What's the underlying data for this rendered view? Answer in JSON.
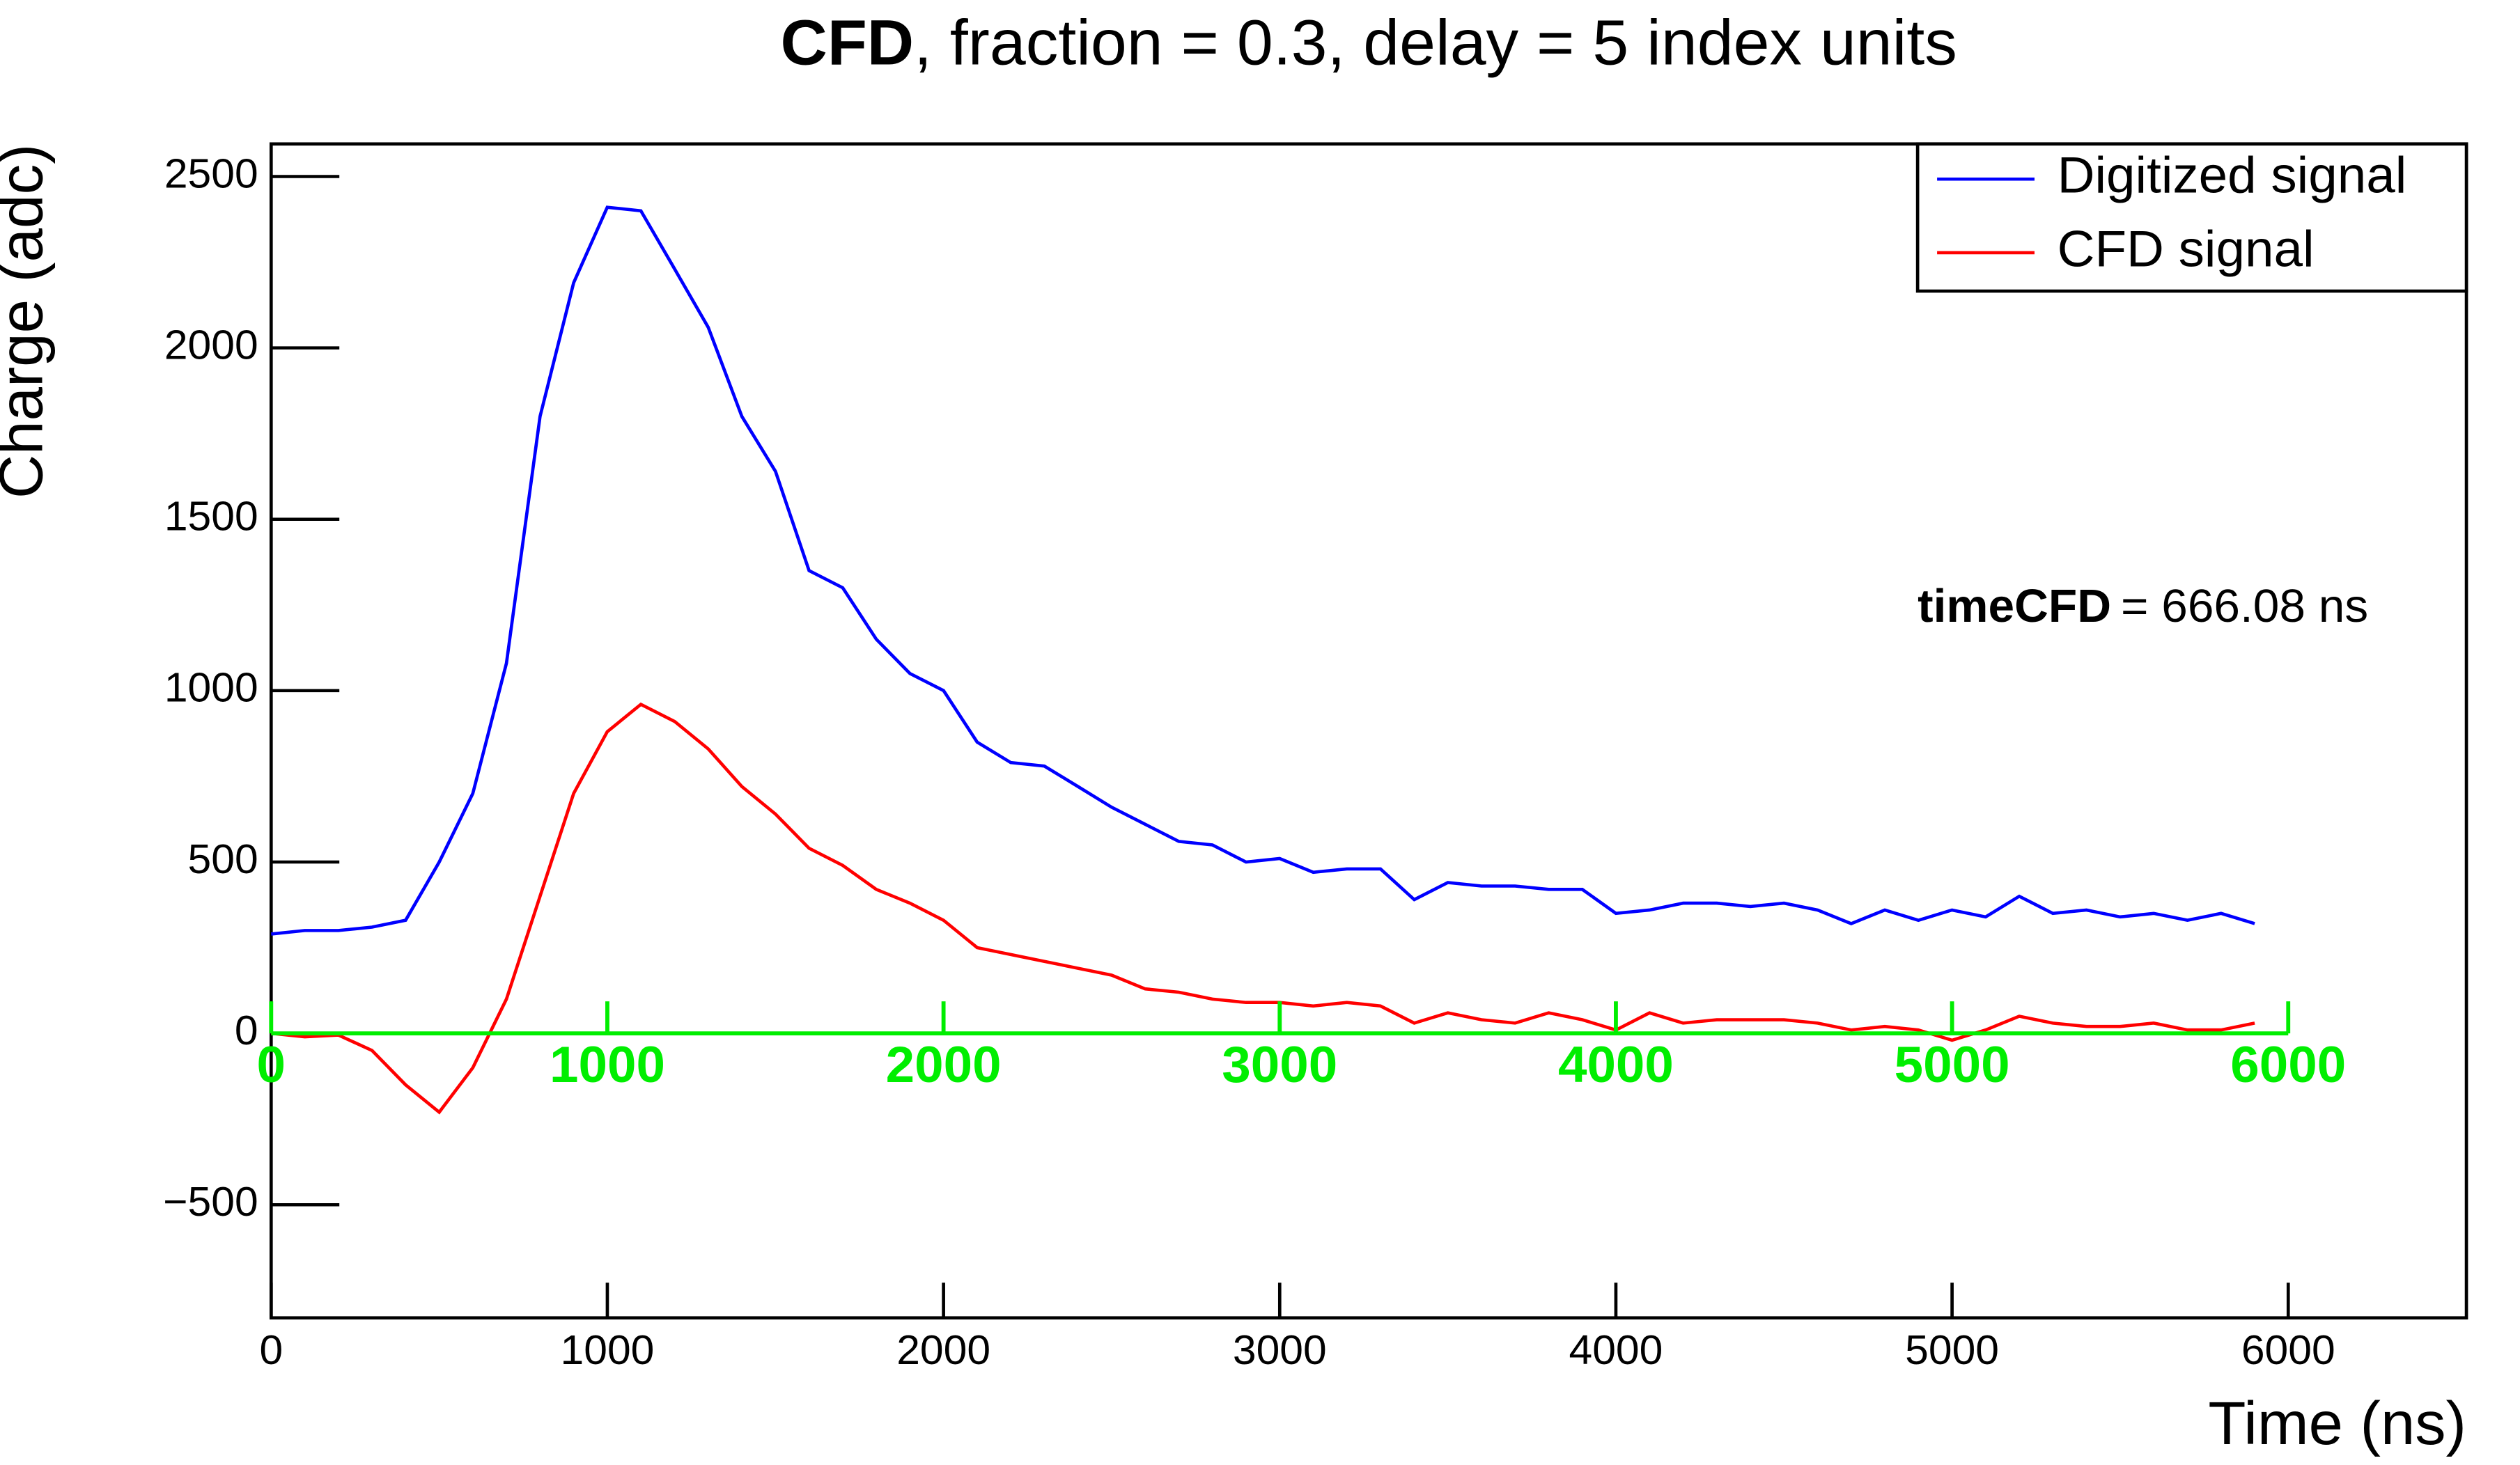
{
  "chart_data": {
    "type": "line",
    "title_bold": "CFD",
    "title": ",  fraction = 0.3, delay = 5 index units",
    "x_label": "Time (ns)",
    "y_label": "Charge (adc)",
    "annotation": {
      "label": "timeCFD",
      "text": "=  666.08 ns"
    },
    "legend": "top-right",
    "x": [
      0,
      100,
      200,
      300,
      400,
      500,
      600,
      700,
      800,
      900,
      1000,
      1100,
      1200,
      1300,
      1400,
      1500,
      1600,
      1700,
      1800,
      1900,
      2000,
      2100,
      2200,
      2300,
      2400,
      2500,
      2600,
      2700,
      2800,
      2900,
      3000,
      3100,
      3200,
      3300,
      3400,
      3500,
      3600,
      3700,
      3800,
      3900,
      4000,
      4100,
      4200,
      4300,
      4400,
      4500,
      4600,
      4700,
      4800,
      4900,
      5000,
      5100,
      5200,
      5300,
      5400,
      5500,
      5600,
      5700,
      5800,
      5900
    ],
    "series": [
      {
        "name": "Digitized signal",
        "color": "#0000ff",
        "values": [
          290,
          300,
          300,
          310,
          330,
          500,
          700,
          1080,
          1800,
          2190,
          2410,
          2400,
          2230,
          2060,
          1800,
          1640,
          1350,
          1300,
          1150,
          1050,
          1000,
          850,
          790,
          780,
          720,
          660,
          610,
          560,
          550,
          500,
          510,
          470,
          480,
          480,
          390,
          440,
          430,
          430,
          420,
          420,
          350,
          360,
          380,
          380,
          370,
          380,
          360,
          320,
          360,
          330,
          360,
          340,
          400,
          350,
          360,
          340,
          350,
          330,
          350,
          320
        ]
      },
      {
        "name": "CFD signal",
        "color": "#ff0000",
        "values": [
          0,
          -10,
          -5,
          -50,
          -150,
          -230,
          -100,
          100,
          400,
          700,
          880,
          960,
          910,
          830,
          720,
          640,
          540,
          490,
          420,
          380,
          330,
          250,
          230,
          210,
          190,
          170,
          130,
          120,
          100,
          90,
          90,
          80,
          90,
          80,
          30,
          60,
          40,
          30,
          60,
          40,
          10,
          60,
          30,
          40,
          40,
          40,
          30,
          10,
          20,
          10,
          -20,
          10,
          50,
          30,
          20,
          20,
          30,
          10,
          10,
          30
        ]
      }
    ],
    "xlim": [
      0,
      6530
    ],
    "ylim": [
      -830,
      2595
    ],
    "xticks": [
      0,
      1000,
      2000,
      3000,
      4000,
      5000,
      6000
    ],
    "yticks": [
      {
        "value": -500,
        "label": "−500"
      },
      0,
      500,
      1000,
      1500,
      2000,
      2500
    ],
    "zero_axis": {
      "color": "#00ee00",
      "ticks": [
        0,
        1000,
        2000,
        3000,
        4000,
        5000,
        6000
      ]
    }
  }
}
